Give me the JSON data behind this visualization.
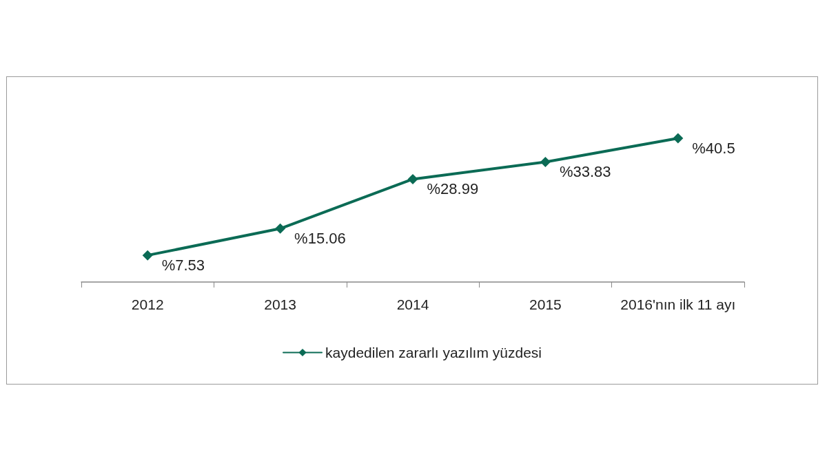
{
  "chart_data": {
    "type": "line",
    "categories": [
      "2012",
      "2013",
      "2014",
      "2015",
      "2016'nın ilk 11 ayı"
    ],
    "series": [
      {
        "name": "kaydedilen zararlı yazılım yüzdesi",
        "color": "#0b6b55",
        "values": [
          7.53,
          15.06,
          28.99,
          33.83,
          40.5
        ],
        "value_labels": [
          "%7.53",
          "%15.06",
          "%28.99",
          "%33.83",
          "%40.5"
        ]
      }
    ],
    "marker": "diamond",
    "line_style": "solid",
    "legend": "bottom",
    "grid": false
  }
}
